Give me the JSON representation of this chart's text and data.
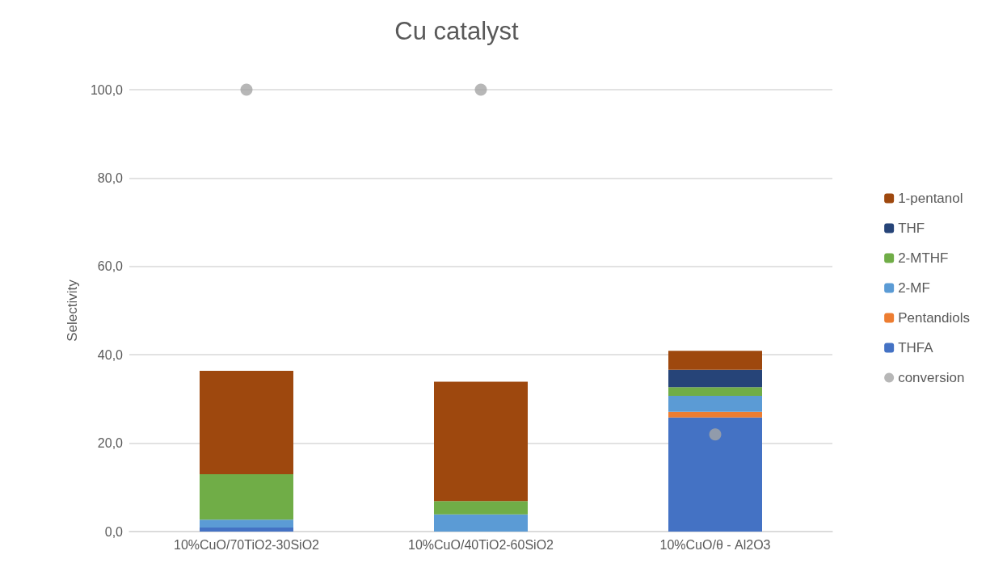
{
  "chart_data": {
    "type": "bar",
    "title": "Cu catalyst",
    "ylabel": "Selectivity",
    "categories": [
      "10%CuO/70TiO2-30SiO2",
      "10%CuO/40TiO2-60SiO2",
      "10%CuO/θ - Al2O3"
    ],
    "stacked": true,
    "series": [
      {
        "name": "THFA",
        "color": "#4472c4",
        "values": [
          0.9,
          0,
          25.8
        ]
      },
      {
        "name": "Pentandiols",
        "color": "#ed7d31",
        "values": [
          0,
          0,
          1.3
        ]
      },
      {
        "name": "2-MF",
        "color": "#5b9bd5",
        "values": [
          1.8,
          3.9,
          3.6
        ]
      },
      {
        "name": "2-MTHF",
        "color": "#70ad47",
        "values": [
          10.3,
          3.0,
          2.0
        ]
      },
      {
        "name": "THF",
        "color": "#264478",
        "values": [
          0,
          0,
          3.9
        ]
      },
      {
        "name": "1-pentanol",
        "color": "#9e480e",
        "values": [
          23.4,
          27.0,
          4.3
        ]
      },
      {
        "name": "conversion",
        "type": "scatter",
        "color": "#a5a5a5",
        "marker": "circle",
        "x": [
          "10%CuO/70TiO2-30SiO2",
          "10%CuO/40TiO2-60SiO2",
          "10%CuO/θ - Al2O3"
        ],
        "values": [
          100,
          100,
          22
        ]
      }
    ],
    "ylim": [
      0,
      100
    ],
    "yticks": [
      {
        "value": 0,
        "label": "0,0"
      },
      {
        "value": 20,
        "label": "20,0"
      },
      {
        "value": 40,
        "label": "40,0"
      },
      {
        "value": 60,
        "label": "60,0"
      },
      {
        "value": 80,
        "label": "80,0"
      },
      {
        "value": 100,
        "label": "100,0"
      }
    ],
    "grid": "y",
    "legend": "right"
  }
}
